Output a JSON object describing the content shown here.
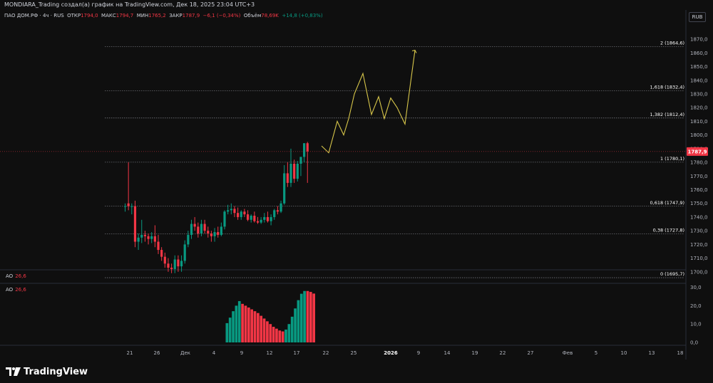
{
  "header": {
    "title": "MONDIARA_Trading создал(а) график на TradingView.com, Дек 18, 2025 23:04 UTC+3",
    "symbol": "ПАО ДОМ.РФ · 4ч · RUS",
    "open_label": "ОТКР",
    "open_value": "1794,0",
    "high_label": "МАКС",
    "high_value": "1794,7",
    "low_label": "МИН",
    "low_value": "1765,2",
    "close_label": "ЗАКР",
    "close_value": "1787,9",
    "change": "−6,1 (−0,34%)",
    "volume_label": "Объём",
    "volume_value": "78,69K",
    "volume_change": "+14,8 (+0,83%)",
    "currency": "RUB"
  },
  "indicator": {
    "name": "AO",
    "value": "26,6"
  },
  "branding": {
    "name": "TradingView"
  },
  "colors": {
    "up": "#089981",
    "down": "#f23645",
    "projection": "#d7c64a",
    "fib_line": "#9598a1",
    "background": "#0f0f0f"
  },
  "chart_data": [
    {
      "type": "candlestick",
      "y_axis_ticks": [
        "1870,0",
        "1860,0",
        "1850,0",
        "1840,0",
        "1830,0",
        "1820,0",
        "1810,0",
        "1800,0",
        "1790,0",
        "1780,0",
        "1770,0",
        "1760,0",
        "1750,0",
        "1740,0",
        "1730,0",
        "1720,0",
        "1710,0",
        "1700,0"
      ],
      "ylim": [
        1695,
        1872
      ],
      "last_price": "1787,9",
      "x_axis_ticks": [
        "21",
        "26",
        "Дек",
        "4",
        "9",
        "12",
        "17",
        "22",
        "25",
        "2026",
        "9",
        "14",
        "19",
        "22",
        "27",
        "Фев",
        "5",
        "10",
        "13",
        "18"
      ],
      "fibonacci_levels": [
        {
          "label": "2 (1864,6)",
          "value": 1864.6
        },
        {
          "label": "1,618 (1832,4)",
          "value": 1832.4
        },
        {
          "label": "1,382 (1812,4)",
          "value": 1812.4
        },
        {
          "label": "1 (1780,1)",
          "value": 1780.1
        },
        {
          "label": "0,618 (1747,9)",
          "value": 1747.9
        },
        {
          "label": "0,38 (1727,8)",
          "value": 1727.8
        },
        {
          "label": "0 (1695,7)",
          "value": 1695.7
        }
      ],
      "candles": [
        [
          1748,
          1750,
          1744,
          1748
        ],
        [
          1750,
          1780,
          1745,
          1748
        ],
        [
          1748,
          1750,
          1742,
          1748
        ],
        [
          1748,
          1752,
          1718,
          1722
        ],
        [
          1722,
          1728,
          1716,
          1725
        ],
        [
          1725,
          1738,
          1721,
          1727
        ],
        [
          1727,
          1730,
          1722,
          1726
        ],
        [
          1726,
          1728,
          1720,
          1724
        ],
        [
          1724,
          1729,
          1721,
          1726
        ],
        [
          1726,
          1734,
          1718,
          1722
        ],
        [
          1722,
          1727,
          1713,
          1716
        ],
        [
          1716,
          1718,
          1708,
          1711
        ],
        [
          1711,
          1714,
          1703,
          1706
        ],
        [
          1706,
          1710,
          1700,
          1703
        ],
        [
          1703,
          1706,
          1699,
          1702
        ],
        [
          1702,
          1712,
          1699,
          1709
        ],
        [
          1709,
          1712,
          1700,
          1704
        ],
        [
          1704,
          1712,
          1700,
          1708
        ],
        [
          1708,
          1723,
          1706,
          1720
        ],
        [
          1720,
          1730,
          1718,
          1727
        ],
        [
          1727,
          1738,
          1724,
          1735
        ],
        [
          1735,
          1740,
          1730,
          1733
        ],
        [
          1733,
          1736,
          1725,
          1728
        ],
        [
          1728,
          1738,
          1726,
          1735
        ],
        [
          1735,
          1738,
          1728,
          1730
        ],
        [
          1730,
          1733,
          1725,
          1728
        ],
        [
          1728,
          1730,
          1722,
          1726
        ],
        [
          1726,
          1732,
          1722,
          1729
        ],
        [
          1729,
          1733,
          1725,
          1727
        ],
        [
          1727,
          1736,
          1726,
          1733
        ],
        [
          1733,
          1745,
          1731,
          1744
        ],
        [
          1744,
          1749,
          1742,
          1745
        ],
        [
          1745,
          1750,
          1742,
          1746
        ],
        [
          1746,
          1748,
          1740,
          1743
        ],
        [
          1743,
          1747,
          1738,
          1740
        ],
        [
          1740,
          1745,
          1738,
          1744
        ],
        [
          1744,
          1746,
          1740,
          1742
        ],
        [
          1742,
          1745,
          1737,
          1738
        ],
        [
          1738,
          1742,
          1736,
          1741
        ],
        [
          1741,
          1744,
          1736,
          1737
        ],
        [
          1737,
          1740,
          1735,
          1736
        ],
        [
          1736,
          1740,
          1735,
          1738
        ],
        [
          1738,
          1743,
          1736,
          1740
        ],
        [
          1740,
          1744,
          1736,
          1737
        ],
        [
          1737,
          1742,
          1734,
          1740
        ],
        [
          1740,
          1746,
          1738,
          1745
        ],
        [
          1745,
          1748,
          1742,
          1744
        ],
        [
          1744,
          1752,
          1743,
          1750
        ],
        [
          1750,
          1778,
          1749,
          1772
        ],
        [
          1772,
          1780,
          1762,
          1765
        ],
        [
          1765,
          1790,
          1762,
          1779
        ],
        [
          1779,
          1782,
          1765,
          1768
        ],
        [
          1768,
          1781,
          1766,
          1779
        ],
        [
          1779,
          1784,
          1770,
          1784
        ],
        [
          1784,
          1794,
          1780,
          1794
        ],
        [
          1794,
          1795,
          1765,
          1788
        ]
      ],
      "projection_path": [
        {
          "x": "19 Дек",
          "y": 1792
        },
        {
          "x": "21 Дек",
          "y": 1787
        },
        {
          "x": "23 Дек",
          "y": 1810
        },
        {
          "x": "24 Дек",
          "y": 1800
        },
        {
          "x": "25 Дек",
          "y": 1830
        },
        {
          "x": "26 Дек",
          "y": 1845
        },
        {
          "x": "28 Дек",
          "y": 1815
        },
        {
          "x": "30 Дек",
          "y": 1828
        },
        {
          "x": "2026",
          "y": 1812
        },
        {
          "x": "3 Янв",
          "y": 1827
        },
        {
          "x": "5 Янв",
          "y": 1820
        },
        {
          "x": "7 Янв",
          "y": 1808
        },
        {
          "x": "9 Янв",
          "y": 1862
        }
      ]
    },
    {
      "type": "bar",
      "title": "AO",
      "y_axis_ticks": [
        "30,0",
        "20,0",
        "10,0",
        "0,0"
      ],
      "ylim": [
        0,
        31
      ],
      "values": [
        {
          "v": 10.5,
          "up": true
        },
        {
          "v": 13.5,
          "up": true
        },
        {
          "v": 17,
          "up": true
        },
        {
          "v": 20,
          "up": true
        },
        {
          "v": 22.5,
          "up": true
        },
        {
          "v": 21,
          "up": false
        },
        {
          "v": 20,
          "up": false
        },
        {
          "v": 19,
          "up": false
        },
        {
          "v": 18,
          "up": false
        },
        {
          "v": 17,
          "up": false
        },
        {
          "v": 16,
          "up": false
        },
        {
          "v": 14.5,
          "up": false
        },
        {
          "v": 13,
          "up": false
        },
        {
          "v": 11.5,
          "up": false
        },
        {
          "v": 10,
          "up": false
        },
        {
          "v": 8.5,
          "up": false
        },
        {
          "v": 7.5,
          "up": false
        },
        {
          "v": 6.5,
          "up": false
        },
        {
          "v": 6,
          "up": false
        },
        {
          "v": 7,
          "up": true
        },
        {
          "v": 10,
          "up": true
        },
        {
          "v": 14,
          "up": true
        },
        {
          "v": 18.5,
          "up": true
        },
        {
          "v": 23,
          "up": true
        },
        {
          "v": 26.5,
          "up": true
        },
        {
          "v": 28,
          "up": true
        },
        {
          "v": 28,
          "up": false
        },
        {
          "v": 27.5,
          "up": false
        },
        {
          "v": 26.6,
          "up": false
        }
      ]
    }
  ]
}
